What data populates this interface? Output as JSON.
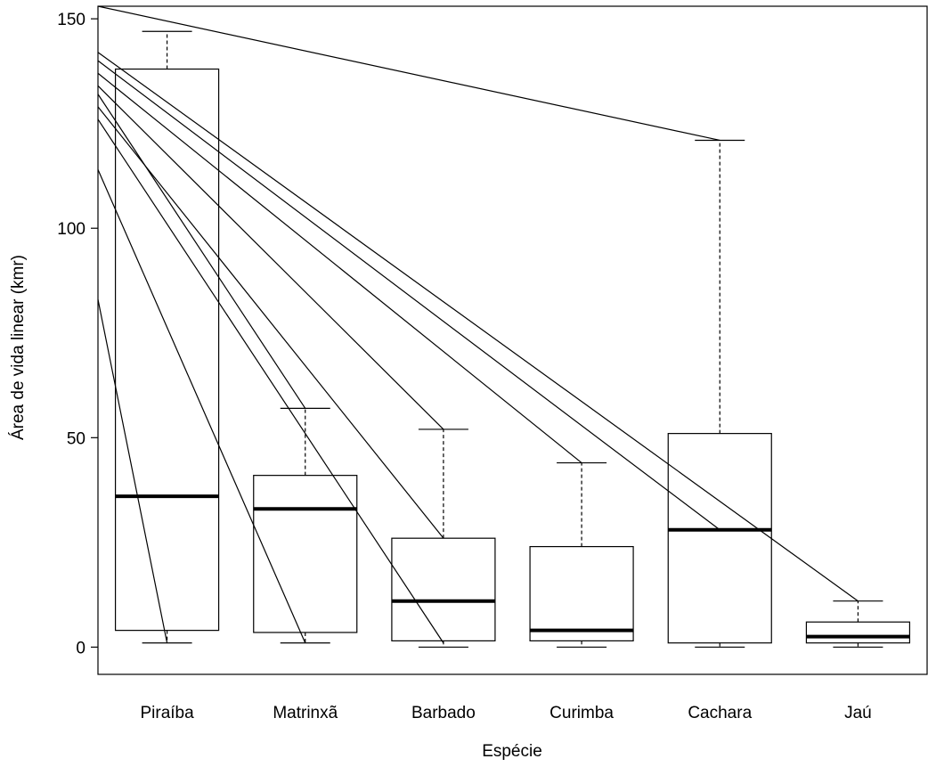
{
  "chart_data": {
    "type": "boxplot",
    "xlabel": "Espécie",
    "ylabel": "Área de vida linear (kmr)",
    "ylim": [
      -6.5,
      153
    ],
    "yticks": [
      0,
      50,
      100,
      150
    ],
    "categories": [
      "Piraíba",
      "Matrinxã",
      "Barbado",
      "Curimba",
      "Cachara",
      "Jaú"
    ],
    "boxes": [
      {
        "name": "Piraíba",
        "whisker_low": 1,
        "q1": 4,
        "median": 36,
        "q3": 138,
        "whisker_high": 147
      },
      {
        "name": "Matrinxã",
        "whisker_low": 1,
        "q1": 3.5,
        "median": 33,
        "q3": 41,
        "whisker_high": 57
      },
      {
        "name": "Barbado",
        "whisker_low": 0,
        "q1": 1.5,
        "median": 11,
        "q3": 26,
        "whisker_high": 52
      },
      {
        "name": "Curimba",
        "whisker_low": 0,
        "q1": 1.5,
        "median": 4,
        "q3": 24,
        "whisker_high": 44
      },
      {
        "name": "Cachara",
        "whisker_low": 0,
        "q1": 1,
        "median": 28,
        "q3": 51,
        "whisker_high": 121
      },
      {
        "name": "Jaú",
        "whisker_low": 0,
        "q1": 1,
        "median": 2.5,
        "q3": 6,
        "whisker_high": 11
      }
    ],
    "overlay_lines": [
      {
        "from": [
          0.5,
          153
        ],
        "to": [
          5.0,
          121
        ]
      },
      {
        "from": [
          0.5,
          142
        ],
        "to": [
          6.0,
          11
        ]
      },
      {
        "from": [
          0.5,
          140
        ],
        "to": [
          5.0,
          28
        ]
      },
      {
        "from": [
          0.5,
          137
        ],
        "to": [
          4.0,
          44
        ]
      },
      {
        "from": [
          0.5,
          134
        ],
        "to": [
          3.0,
          52
        ]
      },
      {
        "from": [
          0.5,
          132
        ],
        "to": [
          2.0,
          57
        ]
      },
      {
        "from": [
          0.5,
          129
        ],
        "to": [
          3.0,
          26
        ]
      },
      {
        "from": [
          0.5,
          126
        ],
        "to": [
          3.0,
          1
        ]
      },
      {
        "from": [
          0.5,
          114
        ],
        "to": [
          2.0,
          1
        ]
      },
      {
        "from": [
          0.5,
          83
        ],
        "to": [
          1.0,
          1
        ]
      }
    ]
  }
}
